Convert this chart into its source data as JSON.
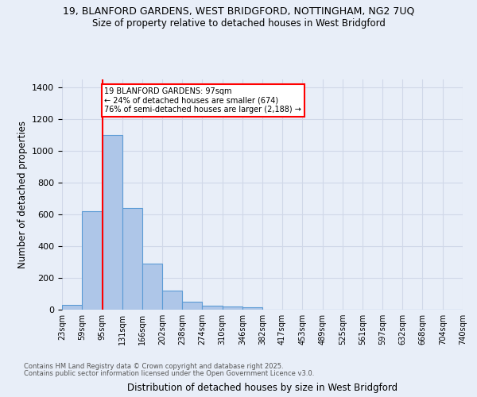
{
  "title_line1": "19, BLANFORD GARDENS, WEST BRIDGFORD, NOTTINGHAM, NG2 7UQ",
  "title_line2": "Size of property relative to detached houses in West Bridgford",
  "xlabel": "Distribution of detached houses by size in West Bridgford",
  "ylabel": "Number of detached properties",
  "bin_edges": [
    23,
    59,
    95,
    131,
    166,
    202,
    238,
    274,
    310,
    346,
    382,
    417,
    453,
    489,
    525,
    561,
    597,
    632,
    668,
    704,
    740
  ],
  "bar_heights": [
    30,
    620,
    1100,
    640,
    290,
    120,
    50,
    25,
    20,
    15,
    0,
    0,
    0,
    0,
    0,
    0,
    0,
    0,
    0,
    0
  ],
  "bar_color": "#aec6e8",
  "bar_edge_color": "#5b9bd5",
  "red_line_x": 95,
  "annotation_text": "19 BLANFORD GARDENS: 97sqm\n← 24% of detached houses are smaller (674)\n76% of semi-detached houses are larger (2,188) →",
  "annotation_box_color": "white",
  "annotation_box_edge_color": "red",
  "red_line_color": "red",
  "grid_color": "#d0d8e8",
  "background_color": "#e8eef8",
  "ylim": [
    0,
    1450
  ],
  "yticks": [
    0,
    200,
    400,
    600,
    800,
    1000,
    1200,
    1400
  ],
  "tick_labels": [
    "23sqm",
    "59sqm",
    "95sqm",
    "131sqm",
    "166sqm",
    "202sqm",
    "238sqm",
    "274sqm",
    "310sqm",
    "346sqm",
    "382sqm",
    "417sqm",
    "453sqm",
    "489sqm",
    "525sqm",
    "561sqm",
    "597sqm",
    "632sqm",
    "668sqm",
    "704sqm",
    "740sqm"
  ],
  "footnote_line1": "Contains HM Land Registry data © Crown copyright and database right 2025.",
  "footnote_line2": "Contains public sector information licensed under the Open Government Licence v3.0."
}
